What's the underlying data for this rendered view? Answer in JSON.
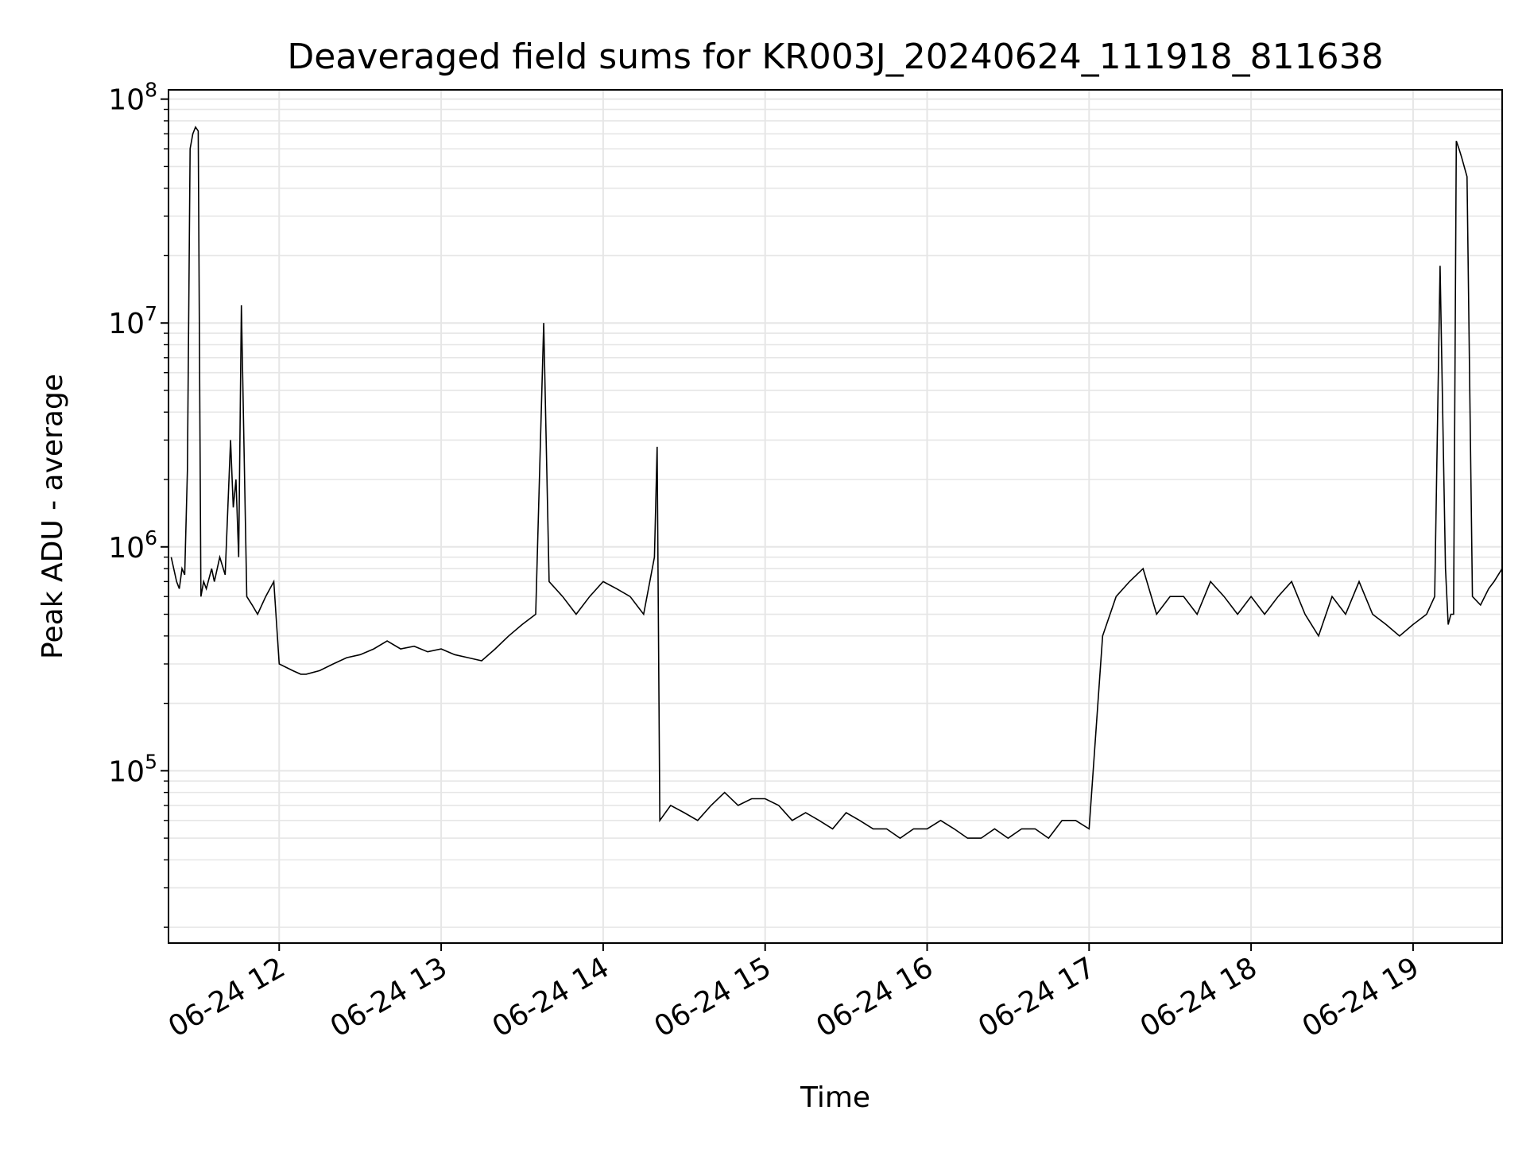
{
  "chart_data": {
    "type": "line",
    "title": "Deaveraged field sums for KR003J_20240624_111918_811638",
    "xlabel": "Time",
    "ylabel": "Peak ADU - average",
    "yscale": "log",
    "xlim": [
      "06-24 11:19",
      "06-24 19:33"
    ],
    "ylim": [
      17000,
      110000000
    ],
    "grid": true,
    "line_color": "#000000",
    "grid_color": "#e6e6e6",
    "x_ticks": [
      {
        "value": "06-24 12:00",
        "label": "06-24 12"
      },
      {
        "value": "06-24 13:00",
        "label": "06-24 13"
      },
      {
        "value": "06-24 14:00",
        "label": "06-24 14"
      },
      {
        "value": "06-24 15:00",
        "label": "06-24 15"
      },
      {
        "value": "06-24 16:00",
        "label": "06-24 16"
      },
      {
        "value": "06-24 17:00",
        "label": "06-24 17"
      },
      {
        "value": "06-24 18:00",
        "label": "06-24 18"
      },
      {
        "value": "06-24 19:00",
        "label": "06-24 19"
      }
    ],
    "y_ticks": [
      {
        "value": 100000,
        "base": "10",
        "exp": "5"
      },
      {
        "value": 1000000,
        "base": "10",
        "exp": "6"
      },
      {
        "value": 10000000,
        "base": "10",
        "exp": "7"
      },
      {
        "value": 100000000,
        "base": "10",
        "exp": "8"
      }
    ],
    "series": [
      {
        "x": [
          "06-24 11:20",
          "06-24 11:22",
          "06-24 11:23",
          "06-24 11:24",
          "06-24 11:25",
          "06-24 11:26",
          "06-24 11:27",
          "06-24 11:28",
          "06-24 11:29",
          "06-24 11:30",
          "06-24 11:31",
          "06-24 11:32",
          "06-24 11:33",
          "06-24 11:35",
          "06-24 11:36",
          "06-24 11:38",
          "06-24 11:40",
          "06-24 11:42",
          "06-24 11:43",
          "06-24 11:44",
          "06-24 11:45",
          "06-24 11:46",
          "06-24 11:48",
          "06-24 11:50",
          "06-24 11:52",
          "06-24 11:55",
          "06-24 11:58",
          "06-24 12:00",
          "06-24 12:05",
          "06-24 12:08",
          "06-24 12:10",
          "06-24 12:15",
          "06-24 12:20",
          "06-24 12:25",
          "06-24 12:30",
          "06-24 12:35",
          "06-24 12:40",
          "06-24 12:45",
          "06-24 12:50",
          "06-24 12:55",
          "06-24 13:00",
          "06-24 13:05",
          "06-24 13:10",
          "06-24 13:15",
          "06-24 13:20",
          "06-24 13:25",
          "06-24 13:30",
          "06-24 13:35",
          "06-24 13:38",
          "06-24 13:40",
          "06-24 13:45",
          "06-24 13:50",
          "06-24 13:55",
          "06-24 14:00",
          "06-24 14:05",
          "06-24 14:10",
          "06-24 14:15",
          "06-24 14:19",
          "06-24 14:20",
          "06-24 14:21",
          "06-24 14:25",
          "06-24 14:30",
          "06-24 14:35",
          "06-24 14:40",
          "06-24 14:45",
          "06-24 14:50",
          "06-24 14:55",
          "06-24 15:00",
          "06-24 15:05",
          "06-24 15:10",
          "06-24 15:15",
          "06-24 15:20",
          "06-24 15:25",
          "06-24 15:30",
          "06-24 15:35",
          "06-24 15:40",
          "06-24 15:45",
          "06-24 15:50",
          "06-24 15:55",
          "06-24 16:00",
          "06-24 16:05",
          "06-24 16:10",
          "06-24 16:15",
          "06-24 16:20",
          "06-24 16:25",
          "06-24 16:30",
          "06-24 16:35",
          "06-24 16:40",
          "06-24 16:45",
          "06-24 16:50",
          "06-24 16:55",
          "06-24 17:00",
          "06-24 17:05",
          "06-24 17:10",
          "06-24 17:15",
          "06-24 17:20",
          "06-24 17:25",
          "06-24 17:30",
          "06-24 17:35",
          "06-24 17:40",
          "06-24 17:45",
          "06-24 17:50",
          "06-24 17:55",
          "06-24 18:00",
          "06-24 18:05",
          "06-24 18:10",
          "06-24 18:15",
          "06-24 18:20",
          "06-24 18:25",
          "06-24 18:30",
          "06-24 18:35",
          "06-24 18:40",
          "06-24 18:45",
          "06-24 18:50",
          "06-24 18:55",
          "06-24 19:00",
          "06-24 19:05",
          "06-24 19:08",
          "06-24 19:10",
          "06-24 19:12",
          "06-24 19:13",
          "06-24 19:14",
          "06-24 19:15",
          "06-24 19:16",
          "06-24 19:17",
          "06-24 19:18",
          "06-24 19:20",
          "06-24 19:22",
          "06-24 19:25",
          "06-24 19:28",
          "06-24 19:30",
          "06-24 19:33"
        ],
        "y": [
          900000,
          700000,
          650000,
          800000,
          750000,
          2200000,
          60000000,
          70000000,
          75000000,
          72000000,
          600000,
          700000,
          650000,
          800000,
          700000,
          900000,
          750000,
          3000000,
          1500000,
          2000000,
          900000,
          12000000,
          600000,
          550000,
          500000,
          600000,
          700000,
          300000,
          280000,
          270000,
          270000,
          280000,
          300000,
          320000,
          330000,
          350000,
          380000,
          350000,
          360000,
          340000,
          350000,
          330000,
          320000,
          310000,
          350000,
          400000,
          450000,
          500000,
          10000000,
          700000,
          600000,
          500000,
          600000,
          700000,
          650000,
          600000,
          500000,
          900000,
          2800000,
          60000,
          70000,
          65000,
          60000,
          70000,
          80000,
          70000,
          75000,
          75000,
          70000,
          60000,
          65000,
          60000,
          55000,
          65000,
          60000,
          55000,
          55000,
          50000,
          55000,
          55000,
          60000,
          55000,
          50000,
          50000,
          55000,
          50000,
          55000,
          55000,
          50000,
          60000,
          60000,
          55000,
          400000,
          600000,
          700000,
          800000,
          500000,
          600000,
          600000,
          500000,
          700000,
          600000,
          500000,
          600000,
          500000,
          600000,
          700000,
          500000,
          400000,
          600000,
          500000,
          700000,
          500000,
          450000,
          400000,
          450000,
          500000,
          600000,
          18000000,
          800000,
          450000,
          500000,
          500000,
          65000000,
          60000000,
          55000000,
          45000000,
          600000,
          550000,
          650000,
          700000,
          800000
        ]
      }
    ]
  }
}
